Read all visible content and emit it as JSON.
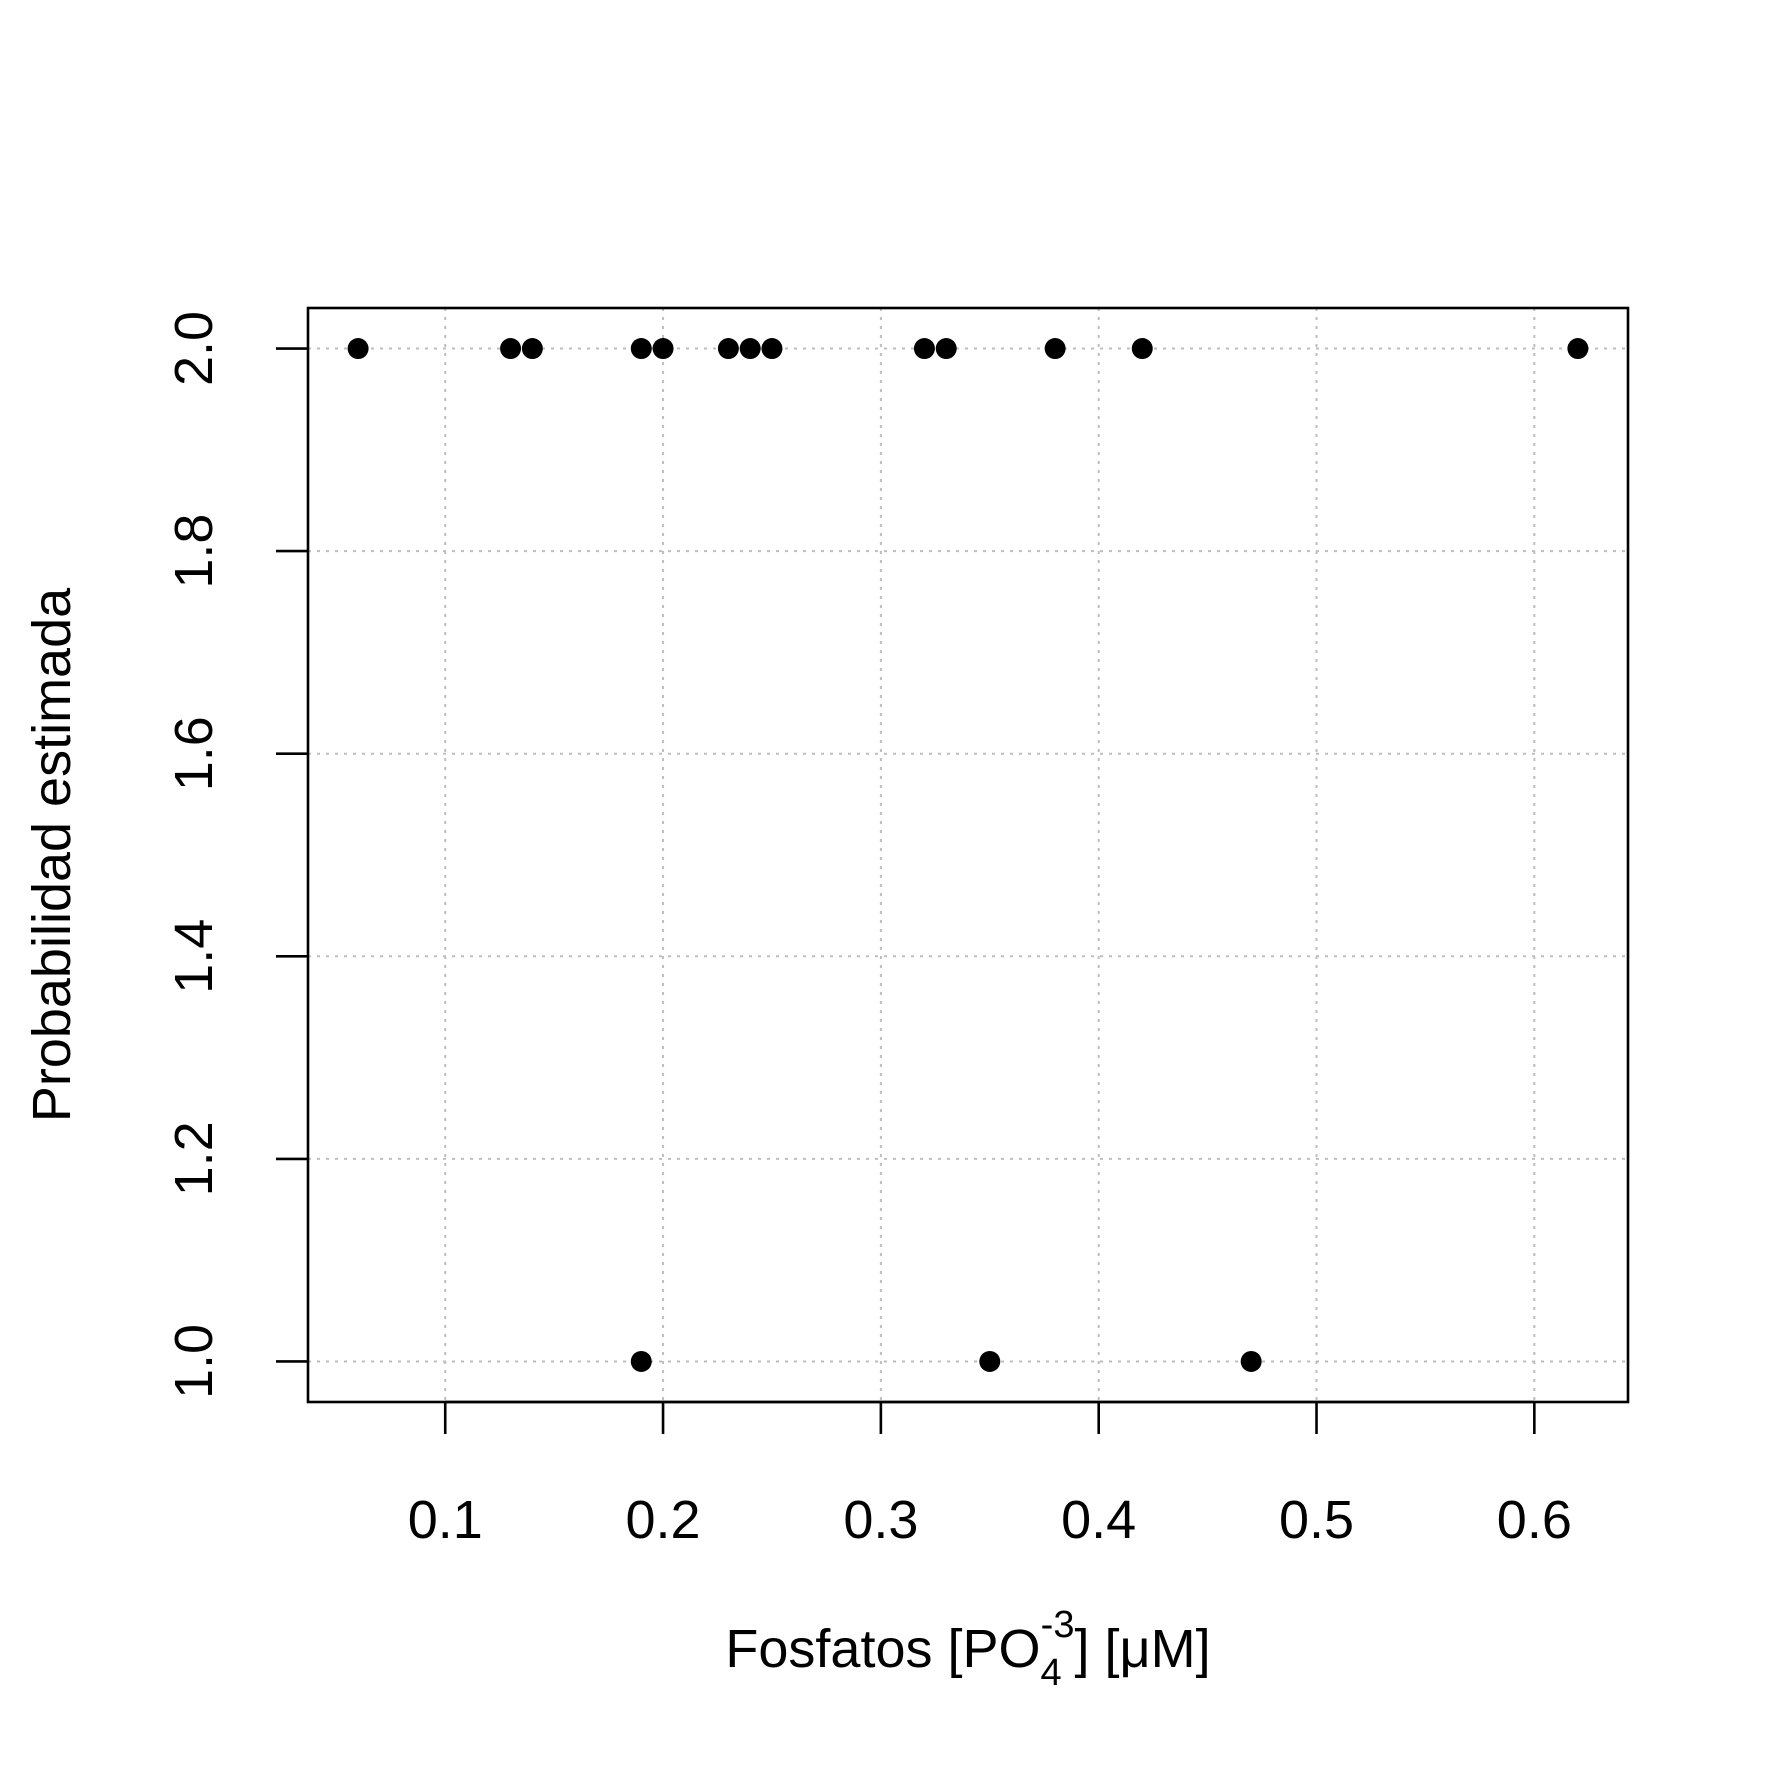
{
  "chart_data": {
    "type": "scatter",
    "title": "",
    "xlabel": {
      "prefix": "Fosfatos [PO",
      "subscript": "4",
      "superscript": "-3",
      "suffix": "] [μM]"
    },
    "ylabel": "Probabilidad estimada",
    "xlim": [
      0.037,
      0.643
    ],
    "ylim": [
      0.96,
      2.04
    ],
    "x_ticks": [
      0.1,
      0.2,
      0.3,
      0.4,
      0.5,
      0.6
    ],
    "x_tick_labels": [
      "0.1",
      "0.2",
      "0.3",
      "0.4",
      "0.5",
      "0.6"
    ],
    "y_ticks": [
      1.0,
      1.2,
      1.4,
      1.6,
      1.8,
      2.0
    ],
    "y_tick_labels": [
      "1.0",
      "1.2",
      "1.4",
      "1.6",
      "1.8",
      "2.0"
    ],
    "grid": true,
    "point_color": "#000000",
    "grid_color": "#bebebe",
    "points": [
      {
        "x": 0.06,
        "y": 2.0
      },
      {
        "x": 0.13,
        "y": 2.0
      },
      {
        "x": 0.14,
        "y": 2.0
      },
      {
        "x": 0.19,
        "y": 2.0
      },
      {
        "x": 0.2,
        "y": 2.0
      },
      {
        "x": 0.23,
        "y": 2.0
      },
      {
        "x": 0.24,
        "y": 2.0
      },
      {
        "x": 0.25,
        "y": 2.0
      },
      {
        "x": 0.32,
        "y": 2.0
      },
      {
        "x": 0.33,
        "y": 2.0
      },
      {
        "x": 0.38,
        "y": 2.0
      },
      {
        "x": 0.42,
        "y": 2.0
      },
      {
        "x": 0.62,
        "y": 2.0
      },
      {
        "x": 0.19,
        "y": 1.0
      },
      {
        "x": 0.35,
        "y": 1.0
      },
      {
        "x": 0.47,
        "y": 1.0
      }
    ]
  }
}
